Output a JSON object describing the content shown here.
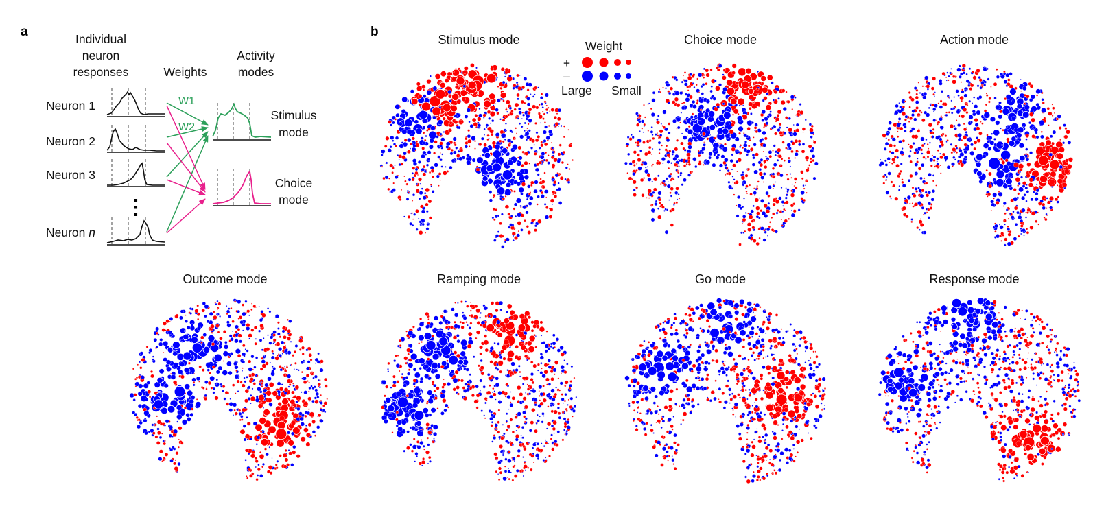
{
  "panel_a": {
    "letter": "a",
    "header_responses": [
      "Individual",
      "neuron",
      "responses"
    ],
    "header_weights": "Weights",
    "header_modes": [
      "Activity",
      "modes"
    ],
    "neurons": [
      "Neuron 1",
      "Neuron 2",
      "Neuron 3",
      "Neuron "
    ],
    "neuron_n_italic": "n",
    "ellipsis": "⋮",
    "weight_labels": [
      "W1",
      "W2"
    ],
    "stimulus_mode": [
      "Stimulus",
      "mode"
    ],
    "choice_mode": [
      "Choice",
      "mode"
    ],
    "colors": {
      "stimulus": "#2ca05a",
      "choice": "#e8208c",
      "trace": "#111111"
    }
  },
  "panel_b": {
    "letter": "b",
    "legend": {
      "title": "Weight",
      "plus": "+",
      "minus": "–",
      "large": "Large",
      "small": "Small"
    },
    "colors": {
      "positive": "#ff0000",
      "negative": "#0000ff"
    },
    "modes": [
      {
        "title": "Stimulus mode",
        "pos_centers": [
          [
            0.3,
            0.22
          ],
          [
            0.5,
            0.15
          ]
        ],
        "neg_centers": [
          [
            0.2,
            0.3
          ],
          [
            0.6,
            0.6
          ]
        ]
      },
      {
        "title": "Choice mode",
        "pos_centers": [
          [
            0.62,
            0.15
          ]
        ],
        "neg_centers": [
          [
            0.45,
            0.35
          ]
        ]
      },
      {
        "title": "Action mode",
        "pos_centers": [
          [
            0.88,
            0.55
          ]
        ],
        "neg_centers": [
          [
            0.68,
            0.3
          ],
          [
            0.62,
            0.55
          ]
        ]
      },
      {
        "title": "Outcome mode",
        "pos_centers": [
          [
            0.75,
            0.68
          ]
        ],
        "neg_centers": [
          [
            0.35,
            0.3
          ],
          [
            0.2,
            0.55
          ]
        ]
      },
      {
        "title": "Ramping mode",
        "pos_centers": [
          [
            0.65,
            0.2
          ]
        ],
        "neg_centers": [
          [
            0.15,
            0.6
          ],
          [
            0.3,
            0.3
          ]
        ]
      },
      {
        "title": "Go mode",
        "pos_centers": [
          [
            0.78,
            0.52
          ]
        ],
        "neg_centers": [
          [
            0.5,
            0.15
          ],
          [
            0.2,
            0.4
          ]
        ]
      },
      {
        "title": "Response mode",
        "pos_centers": [
          [
            0.75,
            0.78
          ]
        ],
        "neg_centers": [
          [
            0.45,
            0.12
          ],
          [
            0.1,
            0.45
          ]
        ]
      }
    ]
  }
}
